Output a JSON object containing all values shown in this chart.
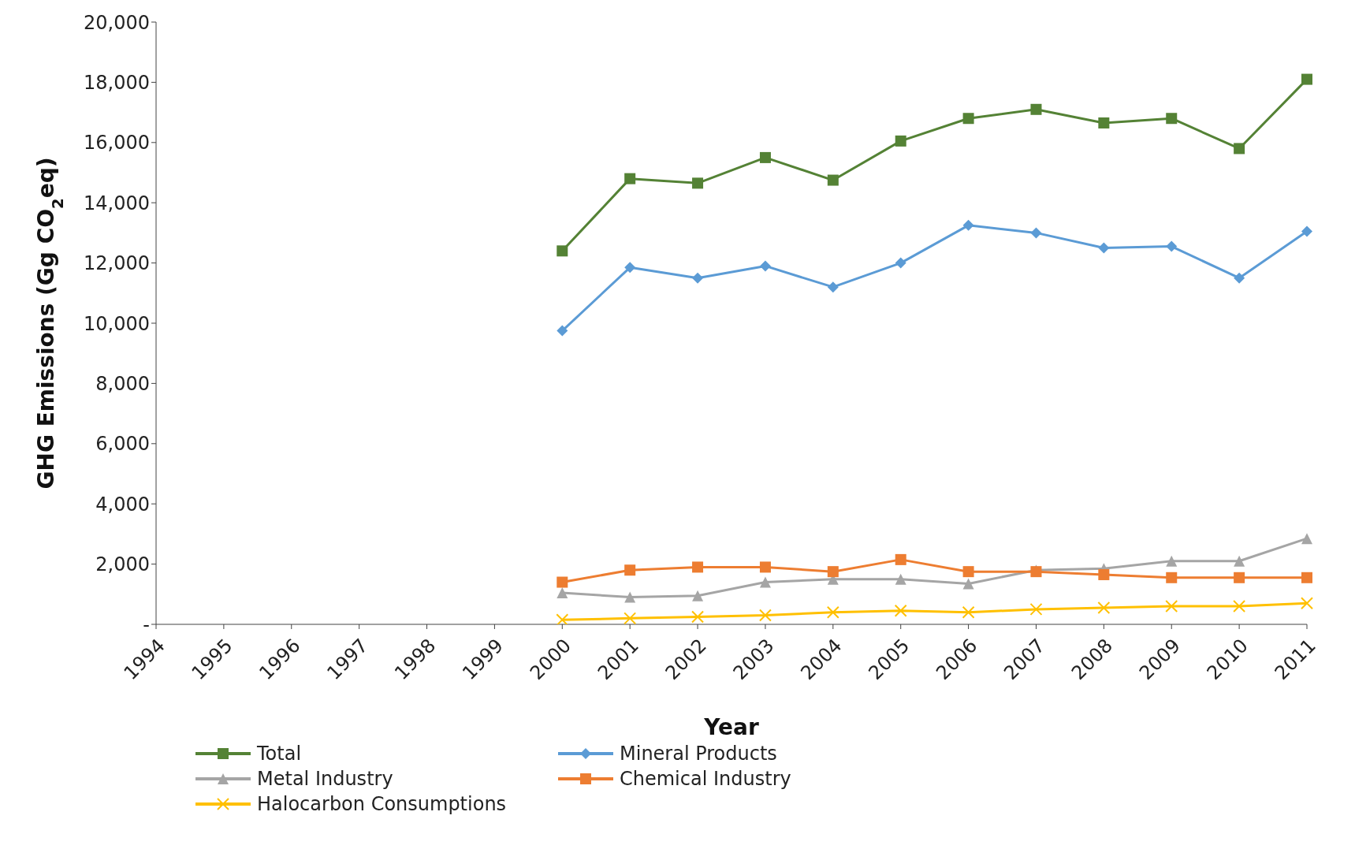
{
  "chart_data": {
    "type": "line",
    "xlabel": "Year",
    "ylabel": "GHG Emissions (Gg CO$_{2}$eq)",
    "categories": [
      "1994",
      "1995",
      "1996",
      "1997",
      "1998",
      "1999",
      "2000",
      "2001",
      "2002",
      "2003",
      "2004",
      "2005",
      "2006",
      "2007",
      "2008",
      "2009",
      "2010",
      "2011"
    ],
    "ylim": [
      0,
      20000
    ],
    "yticks": [
      {
        "value": 0,
        "label": "-"
      },
      {
        "value": 2000,
        "label": "2,000"
      },
      {
        "value": 4000,
        "label": "4,000"
      },
      {
        "value": 6000,
        "label": "6,000"
      },
      {
        "value": 8000,
        "label": "8,000"
      },
      {
        "value": 10000,
        "label": "10,000"
      },
      {
        "value": 12000,
        "label": "12,000"
      },
      {
        "value": 14000,
        "label": "14,000"
      },
      {
        "value": 16000,
        "label": "16,000"
      },
      {
        "value": 18000,
        "label": "18,000"
      },
      {
        "value": 20000,
        "label": "20,000"
      }
    ],
    "grid": false,
    "legend": "bottom",
    "line_style": "solid",
    "series": [
      {
        "name": "Total",
        "color": "#548235",
        "marker": "square",
        "values": [
          null,
          null,
          null,
          null,
          null,
          null,
          12400,
          14800,
          14650,
          15500,
          14750,
          16050,
          16800,
          17100,
          16650,
          16800,
          15800,
          18100
        ]
      },
      {
        "name": "Mineral Products",
        "color": "#5b9bd5",
        "marker": "diamond",
        "values": [
          null,
          null,
          null,
          null,
          null,
          null,
          9750,
          11850,
          11500,
          11900,
          11200,
          12000,
          13250,
          13000,
          12500,
          12550,
          11500,
          13050
        ]
      },
      {
        "name": "Metal Industry",
        "color": "#a5a5a5",
        "marker": "triangle",
        "values": [
          null,
          null,
          null,
          null,
          null,
          null,
          1050,
          900,
          950,
          1400,
          1500,
          1500,
          1350,
          1800,
          1850,
          2100,
          2100,
          2850
        ]
      },
      {
        "name": "Chemical Industry",
        "color": "#ed7d31",
        "marker": "square",
        "values": [
          null,
          null,
          null,
          null,
          null,
          null,
          1400,
          1800,
          1900,
          1900,
          1750,
          2150,
          1750,
          1750,
          1650,
          1550,
          1550,
          1550
        ]
      },
      {
        "name": "Halocarbon Consumptions",
        "color": "#ffc000",
        "marker": "cross",
        "values": [
          null,
          null,
          null,
          null,
          null,
          null,
          150,
          200,
          250,
          300,
          400,
          450,
          400,
          500,
          550,
          600,
          600,
          700
        ]
      }
    ]
  }
}
